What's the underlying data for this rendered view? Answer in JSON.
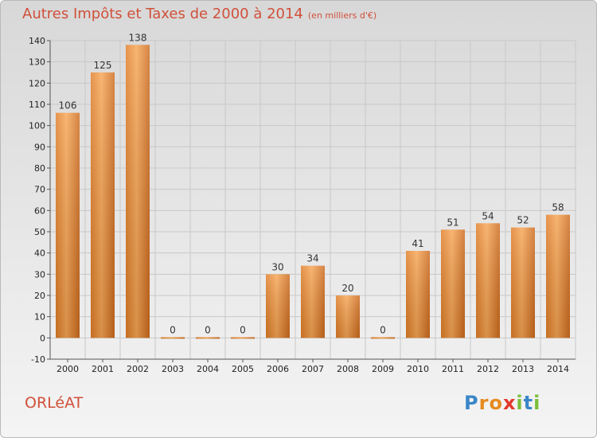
{
  "title": "Autres Impôts et Taxes de 2000 à 2014",
  "subtitle": "(en milliers d'€)",
  "commune": "ORLéAT",
  "logo": {
    "letters": [
      "P",
      "r",
      "o",
      "x",
      "i",
      "t",
      "i"
    ],
    "colors": [
      "#3a86c8",
      "#e58b1f",
      "#e58b1f",
      "#e2382b",
      "#7bbd3a",
      "#3a86c8",
      "#7bbd3a"
    ]
  },
  "colors": {
    "bar_light": "#f6a554",
    "bar_dark": "#cd6a1c",
    "title": "#d0503a",
    "grid": "#c8c8c8"
  },
  "chart_data": {
    "type": "bar",
    "title": "Autres Impôts et Taxes de 2000 à 2014",
    "subtitle": "(en milliers d'€)",
    "categories": [
      "2000",
      "2001",
      "2002",
      "2003",
      "2004",
      "2005",
      "2006",
      "2007",
      "2008",
      "2009",
      "2010",
      "2011",
      "2012",
      "2013",
      "2014"
    ],
    "values": [
      106,
      125,
      138,
      0,
      0,
      0,
      30,
      34,
      20,
      0,
      41,
      51,
      54,
      52,
      58
    ],
    "data_labels": [
      "106",
      "125",
      "138",
      "0",
      "0",
      "0",
      "30",
      "34",
      "20",
      "0",
      "41",
      "51",
      "54",
      "52",
      "58"
    ],
    "yticks": [
      -10,
      0,
      10,
      20,
      30,
      40,
      50,
      60,
      70,
      80,
      90,
      100,
      110,
      120,
      130,
      140
    ],
    "ylim": [
      -10,
      140
    ],
    "xlabel": "",
    "ylabel": "",
    "grid": true
  }
}
